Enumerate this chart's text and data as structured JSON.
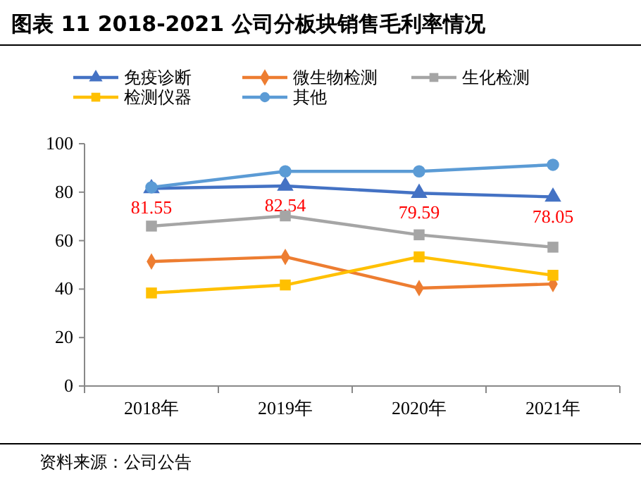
{
  "chart_data": {
    "type": "line",
    "title": "图表 11 2018-2021 公司分板块销售毛利率情况",
    "categories": [
      "2018年",
      "2019年",
      "2020年",
      "2021年"
    ],
    "series": [
      {
        "name": "免疫诊断",
        "color": "#4472c4",
        "marker": "triangle",
        "values": [
          81.55,
          82.54,
          79.59,
          78.05
        ],
        "value_labels": [
          "81.55",
          "82.54",
          "79.59",
          "78.05"
        ]
      },
      {
        "name": "微生物检测",
        "color": "#ed7d31",
        "marker": "diamond",
        "values": [
          51.4,
          53.3,
          40.4,
          42.1
        ]
      },
      {
        "name": "生化检测",
        "color": "#a5a5a5",
        "marker": "square",
        "values": [
          66.0,
          70.2,
          62.4,
          57.3
        ]
      },
      {
        "name": "检测仪器",
        "color": "#ffc000",
        "marker": "square",
        "values": [
          38.4,
          41.7,
          53.3,
          45.7
        ]
      },
      {
        "name": "其他",
        "color": "#5b9bd5",
        "marker": "circle",
        "values": [
          82.0,
          88.6,
          88.6,
          91.3
        ]
      }
    ],
    "ylim": [
      0,
      100
    ],
    "yticks": [
      0,
      20,
      40,
      60,
      80,
      100
    ],
    "grid": false,
    "legend": "top",
    "annotations": [
      "资料来源：公司公告"
    ]
  }
}
